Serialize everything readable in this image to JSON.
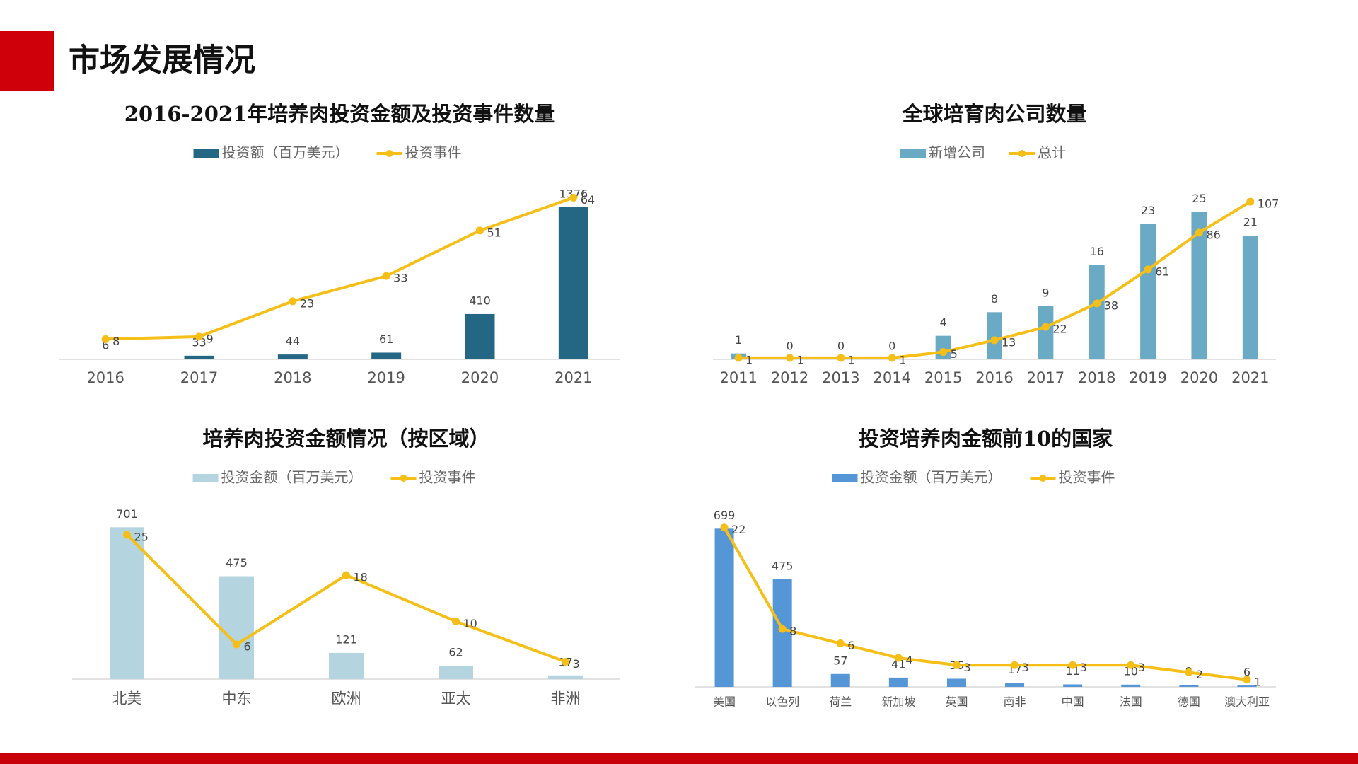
{
  "title": "市场发展情况",
  "chart_data": [
    {
      "type": "combo",
      "title": "2016-2021年培养肉投资金额及投资事件数量",
      "categories": [
        "2016",
        "2017",
        "2018",
        "2019",
        "2020",
        "2021"
      ],
      "series": [
        {
          "name": "投资额（百万美元）",
          "color": "#246785",
          "kind": "bar",
          "values": [
            6,
            33,
            44,
            61,
            410,
            1376
          ]
        },
        {
          "name": "投资事件",
          "color": "#f5bf17",
          "kind": "line",
          "axis": "y2",
          "values": [
            8,
            9,
            23,
            33,
            51,
            64
          ]
        }
      ],
      "ylim": [
        0,
        1600
      ],
      "y2lim": [
        0,
        70
      ]
    },
    {
      "type": "combo",
      "title": "全球培育肉公司数量",
      "categories": [
        "2011",
        "2012",
        "2013",
        "2014",
        "2015",
        "2016",
        "2017",
        "2018",
        "2019",
        "2020",
        "2021"
      ],
      "series": [
        {
          "name": "新增公司",
          "color": "#6aaac4",
          "kind": "bar",
          "values": [
            1,
            0,
            0,
            0,
            4,
            8,
            9,
            16,
            23,
            25,
            21
          ]
        },
        {
          "name": "总计",
          "color": "#f5bf17",
          "kind": "line",
          "axis": "y2",
          "values": [
            1,
            1,
            1,
            1,
            5,
            13,
            22,
            38,
            61,
            86,
            107
          ]
        }
      ],
      "ylim": [
        0,
        30
      ],
      "y2lim": [
        0,
        120
      ]
    },
    {
      "type": "combo",
      "title": "培养肉投资金额情况（按区域）",
      "categories": [
        "北美",
        "中东",
        "欧洲",
        "亚太",
        "非洲"
      ],
      "series": [
        {
          "name": "投资金额（百万美元）",
          "color": "#b4d5e0",
          "kind": "bar",
          "values": [
            701,
            475,
            121,
            62,
            17
          ]
        },
        {
          "name": "投资事件",
          "color": "#f5bf17",
          "kind": "line",
          "axis": "y2",
          "values": [
            25,
            6,
            18,
            10,
            3
          ]
        }
      ],
      "ylim": [
        0,
        800
      ],
      "y2lim": [
        0,
        30
      ]
    },
    {
      "type": "combo",
      "title": "投资培养肉金额前10的国家",
      "categories": [
        "美国",
        "以色列",
        "荷兰",
        "新加坡",
        "英国",
        "南非",
        "中国",
        "法国",
        "德国",
        "澳大利亚"
      ],
      "series": [
        {
          "name": "投资金额（百万美元）",
          "color": "#5596d6",
          "kind": "bar",
          "values": [
            699,
            475,
            57,
            41,
            36,
            17,
            11,
            10,
            9,
            6
          ]
        },
        {
          "name": "投资事件",
          "color": "#f5bf17",
          "kind": "line",
          "axis": "y2",
          "values": [
            22,
            8,
            6,
            4,
            3,
            3,
            3,
            3,
            2,
            1
          ]
        }
      ],
      "ylim": [
        0,
        800
      ],
      "y2lim": [
        0,
        25
      ]
    }
  ]
}
